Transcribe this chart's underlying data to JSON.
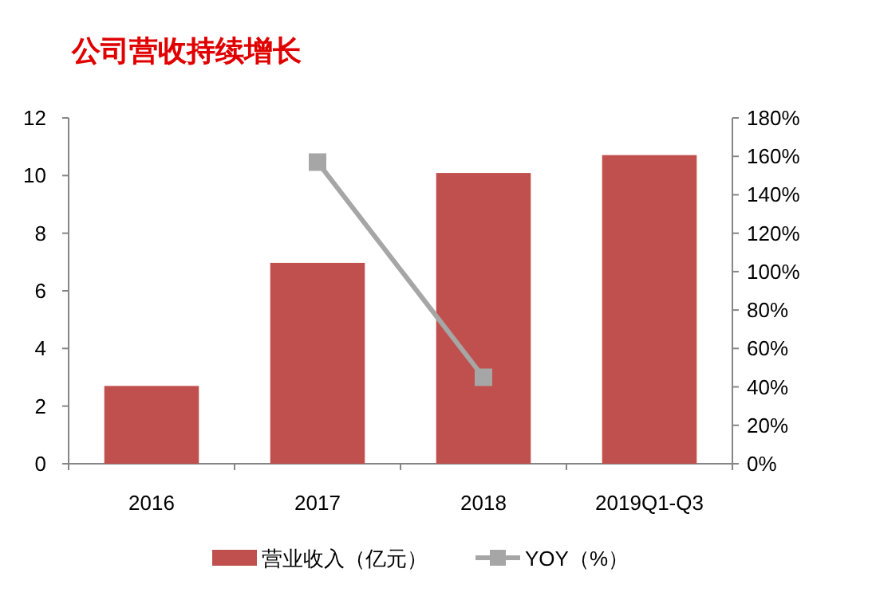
{
  "chart_data": {
    "type": "bar",
    "title": "公司营收持续增长",
    "categories": [
      "2016",
      "2017",
      "2018",
      "2019Q1-Q3"
    ],
    "series": [
      {
        "name": "营业收入（亿元）",
        "color": "#c0504d",
        "values": [
          2.7,
          6.97,
          10.09,
          10.71
        ]
      },
      {
        "name": "YOY（%）",
        "type": "line",
        "axis": "y2",
        "color": "#a6a6a6",
        "marker": "square",
        "values": [
          null,
          157,
          45,
          null
        ]
      }
    ],
    "ylim": [
      0,
      12
    ],
    "yticks": [
      0,
      2,
      4,
      6,
      8,
      10,
      12
    ],
    "y2lim": [
      0,
      180
    ],
    "y2ticks": [
      {
        "value": 0,
        "label": "0%"
      },
      {
        "value": 20,
        "label": "20%"
      },
      {
        "value": 40,
        "label": "40%"
      },
      {
        "value": 60,
        "label": "60%"
      },
      {
        "value": 80,
        "label": "80%"
      },
      {
        "value": 100,
        "label": "100%"
      },
      {
        "value": 120,
        "label": "120%"
      },
      {
        "value": 140,
        "label": "140%"
      },
      {
        "value": 160,
        "label": "160%"
      },
      {
        "value": 180,
        "label": "180%"
      }
    ],
    "grid": false,
    "legend": "bottom"
  }
}
